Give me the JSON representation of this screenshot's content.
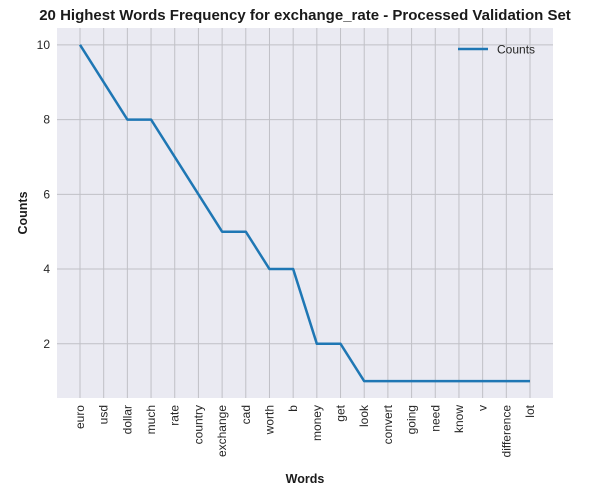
{
  "chart_data": {
    "type": "line",
    "title": "20 Highest Words Frequency for exchange_rate - Processed Validation Set",
    "xlabel": "Words",
    "ylabel": "Counts",
    "categories": [
      "euro",
      "usd",
      "dollar",
      "much",
      "rate",
      "country",
      "exchange",
      "cad",
      "worth",
      "b",
      "money",
      "get",
      "look",
      "convert",
      "going",
      "need",
      "know",
      "v",
      "difference",
      "lot"
    ],
    "series": [
      {
        "name": "Counts",
        "values": [
          10,
          9,
          8,
          8,
          7,
          6,
          5,
          5,
          4,
          4,
          2,
          2,
          1,
          1,
          1,
          1,
          1,
          1,
          1,
          1
        ],
        "color": "#1f77b4"
      }
    ],
    "ylim": [
      0.55,
      10.45
    ],
    "yticks": [
      2,
      4,
      6,
      8,
      10
    ],
    "grid": true,
    "legend_position": "top-right",
    "background_color": "#eaeaf2",
    "grid_color": "#c0c0c6"
  }
}
